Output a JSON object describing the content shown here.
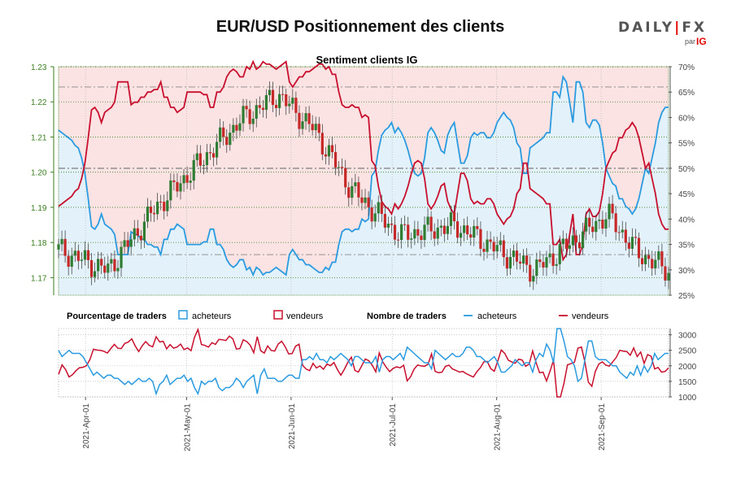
{
  "title": "EUR/USD Positionnement des clients",
  "logo": {
    "brand_left": "DAILY",
    "brand_bar": "|",
    "brand_right": "FX",
    "par": "par",
    "ig": "IG"
  },
  "colors": {
    "buyers": "#2b9be0",
    "sellers": "#c8102e",
    "buyers_fill": "#e3f1fa",
    "sellers_fill": "#fbe2e3",
    "candle_up": "#2e7d32",
    "candle_down": "#c62828",
    "left_axis": "#3a7d1f",
    "grid": "#bbbbbb"
  },
  "chart_data": [
    {
      "type": "candlestick+line",
      "title": "Sentiment clients IG",
      "left_axis": {
        "label": "",
        "ylim": [
          1.165,
          1.23
        ],
        "ticks": [
          "1.17",
          "1.18",
          "1.19",
          "1.20",
          "1.21",
          "1.22",
          "1.23"
        ]
      },
      "right_axis": {
        "label": "",
        "ylim": [
          25,
          70
        ],
        "ticks": [
          "25%",
          "30%",
          "35%",
          "40%",
          "45%",
          "50%",
          "55%",
          "60%",
          "65%",
          "70%"
        ]
      },
      "x_ticks": [
        "2021-Apr-01",
        "2021-May-01",
        "2021-Jun-01",
        "2021-Jul-01",
        "2021-Aug-01",
        "2021-Sep-01"
      ],
      "x_range": [
        "2021-03-24",
        "2021-09-21"
      ],
      "reference_lines": [
        66,
        50,
        33
      ],
      "legend": {
        "pct_title": "Pourcentage de traders",
        "pct_buyers": "acheteurs",
        "pct_sellers": "vendeurs",
        "count_title": "Nombre de traders",
        "count_buyers": "acheteurs",
        "count_sellers": "vendeurs"
      },
      "buyers_pct": [
        57.5,
        57,
        56.5,
        56,
        55.5,
        54.5,
        54,
        52,
        49,
        44,
        38.5,
        38,
        39,
        41,
        39,
        38.5,
        38,
        37,
        33,
        33,
        33,
        33,
        37.5,
        37,
        37,
        36,
        36,
        35,
        35,
        34.5,
        34.5,
        33,
        36,
        36,
        38,
        38,
        39,
        38.5,
        38,
        35,
        35,
        35,
        35,
        35,
        35.5,
        35.5,
        38,
        38,
        35,
        35,
        34,
        32,
        31,
        30.5,
        31,
        32,
        32,
        30,
        30.5,
        29,
        30.5,
        30,
        29,
        29.5,
        29.5,
        30,
        30.5,
        30,
        29.5,
        29,
        33,
        34,
        33,
        32,
        32,
        31,
        31,
        30.5,
        30,
        29.5,
        29.5,
        30.5,
        30,
        31.5,
        31.5,
        35,
        37.5,
        38,
        38,
        37.5,
        38,
        38,
        40,
        39.5,
        40,
        48.5,
        49.5,
        53.5,
        56.5,
        57.5,
        58,
        59,
        57,
        58,
        57,
        55.5,
        53.5,
        51,
        49,
        48.5,
        49,
        52,
        57,
        58,
        57,
        55.5,
        53.5,
        53,
        56.5,
        58,
        59,
        55,
        51,
        51,
        52.5,
        56,
        57,
        56.5,
        57,
        57,
        56,
        56,
        57,
        59,
        60,
        61,
        60,
        59.5,
        58,
        55,
        54,
        49,
        49,
        54,
        54.5,
        55,
        55.5,
        56,
        57,
        57,
        65,
        65,
        64,
        68,
        67,
        63,
        59,
        67,
        67,
        65,
        59,
        58,
        59.5,
        59.5,
        58.5,
        55,
        50,
        48.5,
        47,
        46.5,
        44,
        44,
        42.5,
        42,
        41,
        42,
        44,
        47,
        50,
        49,
        52,
        55,
        59,
        61,
        62,
        62
      ]
    },
    {
      "type": "line",
      "title": "",
      "ylim": [
        1000,
        3200
      ],
      "y_ticks": [
        "1000",
        "1500",
        "2000",
        "2500",
        "3000"
      ],
      "buyers_count": [
        2500,
        2300,
        2400,
        2500,
        2400,
        2400,
        2400,
        2300,
        2100,
        1900,
        1700,
        1800,
        1700,
        1600,
        1700,
        1700,
        1600,
        1600,
        1500,
        1400,
        1500,
        1400,
        1500,
        1600,
        1500,
        1500,
        1600,
        1500,
        1100,
        1400,
        1500,
        1700,
        1400,
        1500,
        1600,
        1600,
        1700,
        1500,
        1600,
        1300,
        1100,
        1500,
        1400,
        1500,
        1500,
        1600,
        1300,
        1200,
        1300,
        1300,
        1400,
        1600,
        1500,
        1300,
        1500,
        1600,
        1700,
        1100,
        1700,
        1900,
        1600,
        1600,
        1600,
        1500,
        1500,
        1600,
        1700,
        1700,
        1600,
        1600,
        2200,
        2200,
        2300,
        2200,
        2400,
        2200,
        2200,
        2100,
        2300,
        2200,
        2300,
        2400,
        2300,
        2200,
        2000,
        2300,
        2300,
        2200,
        2100,
        2100,
        2100,
        2300,
        1800,
        2200,
        2300,
        2300,
        2200,
        2300,
        2400,
        2200,
        2600,
        2500,
        2400,
        2300,
        2200,
        2100,
        2100,
        1900,
        2500,
        2400,
        2300,
        2200,
        2300,
        2400,
        2300,
        2300,
        2400,
        2600,
        2600,
        2500,
        2300,
        2300,
        2200,
        2100,
        2200,
        2300,
        2100,
        1800,
        1800,
        1900,
        2000,
        2200,
        2100,
        2000,
        2100,
        2100,
        1800,
        2200,
        2400,
        2300,
        2700,
        2500,
        2100,
        3200,
        3200,
        2800,
        2300,
        2200,
        2000,
        1500,
        1600,
        2200,
        2800,
        2800,
        2300,
        2200,
        2200,
        2200,
        2100,
        2000,
        2000,
        1800,
        1700,
        1600,
        1800,
        1700,
        2000,
        1700,
        2000,
        1800,
        2000,
        2400,
        2200,
        2300,
        2400,
        2400
      ]
    }
  ]
}
